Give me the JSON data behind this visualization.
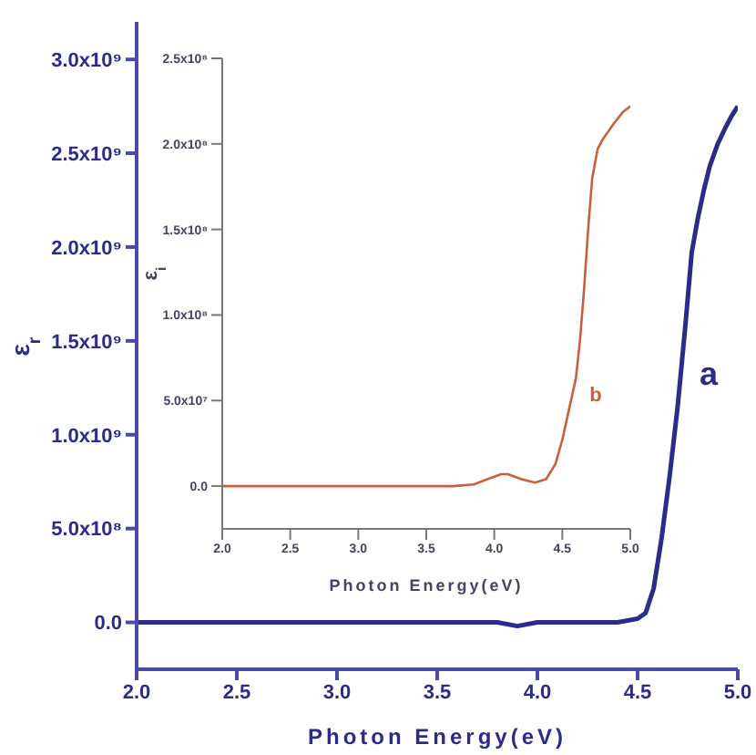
{
  "chart_data": [
    {
      "type": "line",
      "xlabel": "Photon Energy(eV)",
      "ylabel": "ε$_{r}$",
      "xlim": [
        2.0,
        5.0
      ],
      "xticks": [
        {
          "value": 2.0,
          "label": "2.0"
        },
        {
          "value": 2.5,
          "label": "2.5"
        },
        {
          "value": 3.0,
          "label": "3.0"
        },
        {
          "value": 3.5,
          "label": "3.5"
        },
        {
          "value": 4.0,
          "label": "4.0"
        },
        {
          "value": 4.5,
          "label": "4.5"
        },
        {
          "value": 5.0,
          "label": "5.0"
        }
      ],
      "ylim": [
        -250000000,
        3200000000
      ],
      "yticks": [
        {
          "value": 0,
          "label": "0.0"
        },
        {
          "value": 500000000,
          "label": "5.0x10⁸"
        },
        {
          "value": 1000000000,
          "label": "1.0x10⁹"
        },
        {
          "value": 1500000000,
          "label": "1.5x10⁹"
        },
        {
          "value": 2000000000,
          "label": "2.0x10⁹"
        },
        {
          "value": 2500000000,
          "label": "2.5x10⁹"
        },
        {
          "value": 3000000000,
          "label": "3.0x10⁹"
        }
      ],
      "annotations": [
        "a"
      ],
      "series": [
        {
          "color": "#2b2b8c",
          "x": [
            2.0,
            3.0,
            3.8,
            3.9,
            4.0,
            4.4,
            4.45,
            4.5,
            4.54,
            4.58,
            4.62,
            4.66,
            4.7,
            4.74,
            4.77,
            4.8,
            4.83,
            4.86,
            4.9,
            4.94,
            4.97,
            5.0
          ],
          "values": [
            0,
            0,
            0,
            -20000000,
            0,
            0,
            10000000,
            20000000,
            50000000,
            180000000,
            450000000,
            780000000,
            1150000000,
            1600000000,
            1970000000,
            2150000000,
            2300000000,
            2430000000,
            2550000000,
            2640000000,
            2700000000,
            2750000000
          ]
        }
      ]
    },
    {
      "type": "line",
      "xlabel": "Photon Energy(eV)",
      "ylabel": "ε$_{i}$",
      "xlim": [
        2.0,
        5.0
      ],
      "xticks": [
        {
          "value": 2.0,
          "label": "2.0"
        },
        {
          "value": 2.5,
          "label": "2.5"
        },
        {
          "value": 3.0,
          "label": "3.0"
        },
        {
          "value": 3.5,
          "label": "3.5"
        },
        {
          "value": 4.0,
          "label": "4.0"
        },
        {
          "value": 4.5,
          "label": "4.5"
        },
        {
          "value": 5.0,
          "label": "5.0"
        }
      ],
      "ylim": [
        -25000000,
        250000000
      ],
      "yticks": [
        {
          "value": 0,
          "label": "0.0"
        },
        {
          "value": 50000000,
          "label": "5.0x10⁷"
        },
        {
          "value": 100000000,
          "label": "1.0x10⁸"
        },
        {
          "value": 150000000,
          "label": "1.5x10⁸"
        },
        {
          "value": 200000000,
          "label": "2.0x10⁸"
        },
        {
          "value": 250000000,
          "label": "2.5x10⁸"
        }
      ],
      "annotations": [
        "b"
      ],
      "series": [
        {
          "color": "#c8603a",
          "x": [
            2.0,
            3.7,
            3.85,
            3.95,
            4.05,
            4.1,
            4.2,
            4.3,
            4.38,
            4.45,
            4.5,
            4.55,
            4.6,
            4.63,
            4.66,
            4.69,
            4.72,
            4.76,
            4.8,
            4.88,
            4.95,
            5.0
          ],
          "values": [
            0,
            0,
            1000000,
            4000000,
            7000000,
            7000000,
            4000000,
            2000000,
            4000000,
            13000000,
            27000000,
            45000000,
            63000000,
            85000000,
            115000000,
            150000000,
            180000000,
            197000000,
            203000000,
            212000000,
            219000000,
            222000000
          ]
        }
      ]
    }
  ]
}
